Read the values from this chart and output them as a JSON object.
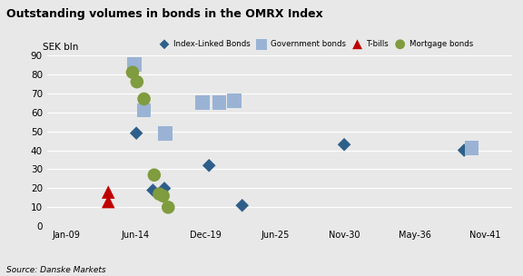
{
  "title": "Outstanding volumes in bonds in the OMRX Index",
  "source": "Source: Danske Markets",
  "ylim": [
    0,
    90
  ],
  "yticks": [
    0,
    10,
    20,
    30,
    40,
    50,
    60,
    70,
    80,
    90
  ],
  "outer_bg": "#e8e8e8",
  "plot_bg": "#e8e8e8",
  "index_linked_bonds": {
    "label": "Index-Linked Bonds",
    "color": "#2e5f8a",
    "marker": "D",
    "size": 55,
    "points": [
      [
        2014.5,
        49
      ],
      [
        2015.8,
        19
      ],
      [
        2016.7,
        20
      ],
      [
        2020.2,
        32
      ],
      [
        2022.8,
        11
      ],
      [
        2030.8,
        43
      ],
      [
        2040.2,
        40
      ]
    ]
  },
  "government_bonds": {
    "label": "Government bonds",
    "color": "#9ab3d5",
    "marker": "s",
    "size": 130,
    "points": [
      [
        2014.35,
        85
      ],
      [
        2015.1,
        61
      ],
      [
        2016.75,
        49
      ],
      [
        2019.7,
        65
      ],
      [
        2021.0,
        65
      ],
      [
        2022.2,
        66
      ],
      [
        2040.8,
        41
      ]
    ]
  },
  "tbills": {
    "label": "T-bills",
    "color": "#c00000",
    "marker": "^",
    "size": 110,
    "points": [
      [
        2012.3,
        18
      ],
      [
        2012.3,
        13
      ]
    ]
  },
  "mortgage_bonds": {
    "label": "Mortgage bonds",
    "color": "#7f9c3e",
    "marker": "o",
    "size": 110,
    "points": [
      [
        2014.2,
        81
      ],
      [
        2014.55,
        76
      ],
      [
        2015.1,
        67
      ],
      [
        2015.9,
        27
      ],
      [
        2016.3,
        17
      ],
      [
        2016.6,
        16
      ],
      [
        2017.0,
        10
      ]
    ]
  },
  "xtick_positions": [
    2009.0,
    2014.417,
    2019.917,
    2025.417,
    2030.833,
    2036.333,
    2041.833
  ],
  "xticklabels": [
    "Jan-09",
    "Jun-14",
    "Dec-19",
    "Jun-25",
    "Nov-30",
    "May-36",
    "Nov-41"
  ],
  "xlim": [
    2007.5,
    2044.0
  ]
}
